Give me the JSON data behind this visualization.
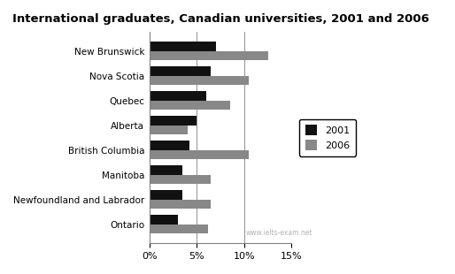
{
  "title": "International graduates, Canadian universities, 2001 and 2006",
  "categories": [
    "New Brunswick",
    "Nova Scotia",
    "Quebec",
    "Alberta",
    "British Columbia",
    "Manitoba",
    "Newfoundland and Labrador",
    "Ontario"
  ],
  "values_2001": [
    7.0,
    6.5,
    6.0,
    5.0,
    4.2,
    3.5,
    3.5,
    3.0
  ],
  "values_2006": [
    12.5,
    10.5,
    8.5,
    4.0,
    10.5,
    6.5,
    6.5,
    6.2
  ],
  "color_2001": "#111111",
  "color_2006": "#888888",
  "label_2001": "2001",
  "label_2006": "2006",
  "xlim": [
    0,
    15
  ],
  "xticks": [
    0,
    5,
    10,
    15
  ],
  "background_color": "#ffffff",
  "watermark": "www.ielts-exam.net"
}
